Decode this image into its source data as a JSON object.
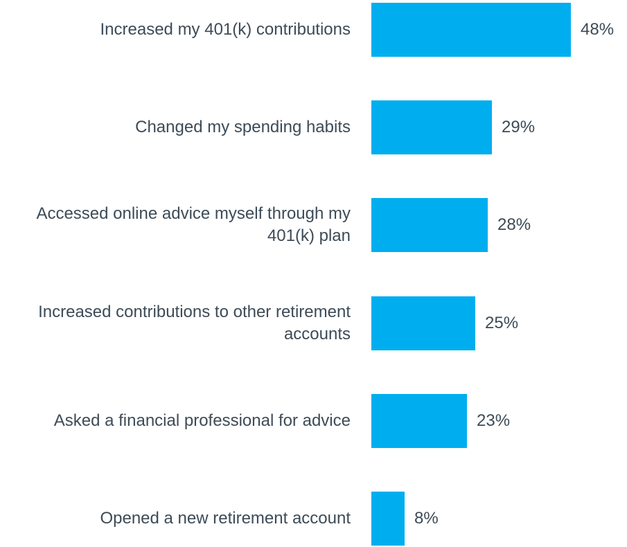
{
  "chart_data": {
    "type": "bar",
    "orientation": "horizontal",
    "categories": [
      "Increased my 401(k) contributions",
      "Changed my spending habits",
      "Accessed online advice myself through my 401(k) plan",
      "Increased contributions to other retirement accounts",
      "Asked a financial professional for advice",
      "Opened a new retirement account"
    ],
    "values": [
      48,
      29,
      28,
      25,
      23,
      8
    ],
    "value_labels": [
      "48%",
      "29%",
      "28%",
      "25%",
      "23%",
      "8%"
    ],
    "color": "#00aeef"
  }
}
